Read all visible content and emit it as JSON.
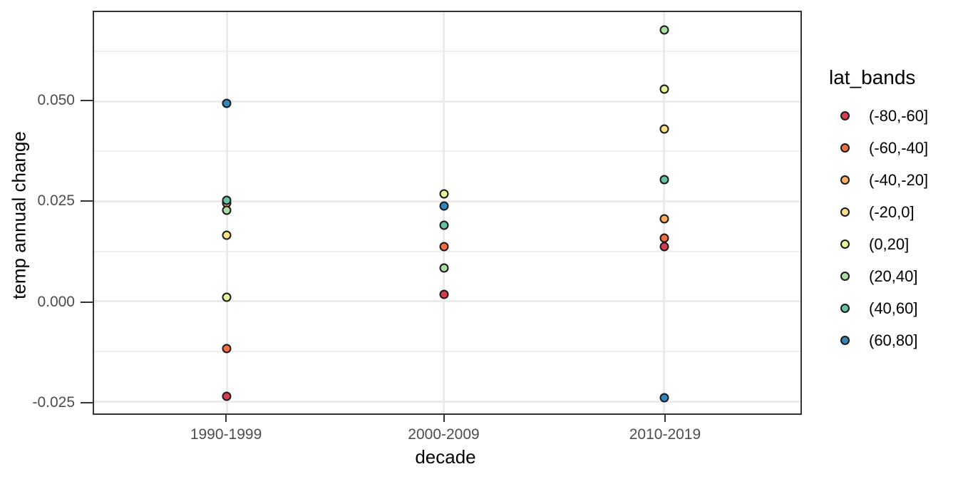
{
  "chart_data": {
    "type": "scatter",
    "title": "",
    "xlabel": "decade",
    "ylabel": "temp annual change",
    "x_categories": [
      "1990-1999",
      "2000-2009",
      "2010-2019"
    ],
    "x_positions_pct": [
      18.8,
      49.5,
      80.7
    ],
    "y_axis": {
      "ylim": [
        -0.028,
        0.0723
      ],
      "ticks": [
        {
          "label": "-0.025",
          "value": -0.025
        },
        {
          "label": "0.000",
          "value": 0
        },
        {
          "label": "0.025",
          "value": 0.025
        },
        {
          "label": "0.050",
          "value": 0.05
        }
      ],
      "minor_breaks": [
        -0.0125,
        0.0125,
        0.0375,
        0.0625
      ]
    },
    "grid": "on",
    "legend": {
      "title": "lat_bands",
      "position": "right"
    },
    "series": [
      {
        "name": "(-80,-60]",
        "color": "#d53e4f",
        "points": [
          {
            "x": "1990-1999",
            "y": -0.0238
          },
          {
            "x": "2000-2009",
            "y": 0.0017
          },
          {
            "x": "2010-2019",
            "y": 0.0136
          }
        ]
      },
      {
        "name": "(-60,-40]",
        "color": "#f46d43",
        "points": [
          {
            "x": "1990-1999",
            "y": -0.0118
          },
          {
            "x": "2000-2009",
            "y": 0.0136
          },
          {
            "x": "2010-2019",
            "y": 0.0159
          }
        ]
      },
      {
        "name": "(-40,-20]",
        "color": "#fdae61",
        "points": [
          {
            "x": "1990-1999",
            "y": 0.0246
          },
          {
            "x": "2010-2019",
            "y": 0.0207
          }
        ]
      },
      {
        "name": "(-20,0]",
        "color": "#fee08b",
        "points": [
          {
            "x": "1990-1999",
            "y": 0.0165
          },
          {
            "x": "2010-2019",
            "y": 0.0431
          }
        ]
      },
      {
        "name": "(0,20]",
        "color": "#e6f598",
        "points": [
          {
            "x": "1990-1999",
            "y": 0.0011
          },
          {
            "x": "2000-2009",
            "y": 0.0268
          },
          {
            "x": "2010-2019",
            "y": 0.053
          }
        ]
      },
      {
        "name": "(20,40]",
        "color": "#abdda4",
        "points": [
          {
            "x": "1990-1999",
            "y": 0.0227
          },
          {
            "x": "2000-2009",
            "y": 0.0083
          },
          {
            "x": "2010-2019",
            "y": 0.0678
          }
        ]
      },
      {
        "name": "(40,60]",
        "color": "#66c2a5",
        "points": [
          {
            "x": "1990-1999",
            "y": 0.0252
          },
          {
            "x": "2000-2009",
            "y": 0.019
          },
          {
            "x": "2010-2019",
            "y": 0.0305
          }
        ]
      },
      {
        "name": "(60,80]",
        "color": "#3288bd",
        "points": [
          {
            "x": "1990-1999",
            "y": 0.0495
          },
          {
            "x": "2000-2009",
            "y": 0.0239
          },
          {
            "x": "2010-2019",
            "y": -0.024
          }
        ]
      }
    ]
  }
}
